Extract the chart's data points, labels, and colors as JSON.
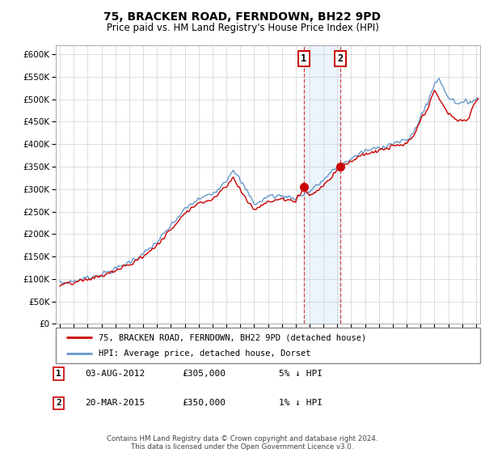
{
  "title": "75, BRACKEN ROAD, FERNDOWN, BH22 9PD",
  "subtitle": "Price paid vs. HM Land Registry's House Price Index (HPI)",
  "legend_line1": "75, BRACKEN ROAD, FERNDOWN, BH22 9PD (detached house)",
  "legend_line2": "HPI: Average price, detached house, Dorset",
  "transaction1_date": "03-AUG-2012",
  "transaction1_price": "£305,000",
  "transaction1_hpi": "5% ↓ HPI",
  "transaction2_date": "20-MAR-2015",
  "transaction2_price": "£350,000",
  "transaction2_hpi": "1% ↓ HPI",
  "footer": "Contains HM Land Registry data © Crown copyright and database right 2024.\nThis data is licensed under the Open Government Licence v3.0.",
  "ylim": [
    0,
    620000
  ],
  "yticks": [
    0,
    50000,
    100000,
    150000,
    200000,
    250000,
    300000,
    350000,
    400000,
    450000,
    500000,
    550000,
    600000
  ],
  "color_red": "#cc0000",
  "color_blue": "#6699cc",
  "color_vline": "#cc3333",
  "color_shade": "#ddeeff",
  "transaction1_x": 2012.58,
  "transaction2_x": 2015.21,
  "transaction1_y": 305000,
  "transaction2_y": 350000,
  "xlim_left": 1994.7,
  "xlim_right": 2025.3
}
